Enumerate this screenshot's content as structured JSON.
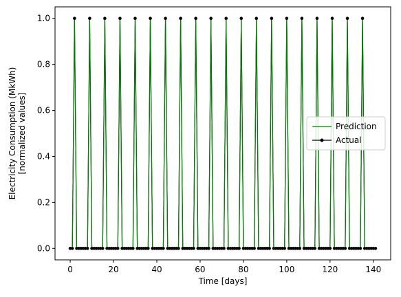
{
  "chart_data": {
    "type": "line",
    "title": "",
    "xlabel": "Time [days]",
    "ylabel_lines": [
      "Electricity Consumption (MkWh)",
      "[normalized values]"
    ],
    "xlim": [
      -7,
      148
    ],
    "ylim": [
      -0.05,
      1.05
    ],
    "xticks": [
      0,
      20,
      40,
      60,
      80,
      100,
      120,
      140
    ],
    "yticks": [
      0.0,
      0.2,
      0.4,
      0.6,
      0.8,
      1.0
    ],
    "xtick_labels": [
      "0",
      "20",
      "40",
      "60",
      "80",
      "100",
      "120",
      "140"
    ],
    "ytick_labels": [
      "0.0",
      "0.2",
      "0.4",
      "0.6",
      "0.8",
      "1.0"
    ],
    "x_range": [
      0,
      141
    ],
    "peak_x": [
      2,
      9,
      16,
      23,
      30,
      37,
      44,
      51,
      58,
      65,
      72,
      79,
      86,
      93,
      100,
      107,
      114,
      121,
      128,
      135
    ],
    "peak_value": 1.0,
    "base_value": 0.0,
    "series": [
      {
        "name": "Prediction",
        "color": "#008000",
        "marker": "none"
      },
      {
        "name": "Actual",
        "color": "#000000",
        "marker": "dot"
      }
    ],
    "legend_position": "center-right",
    "grid": false
  }
}
